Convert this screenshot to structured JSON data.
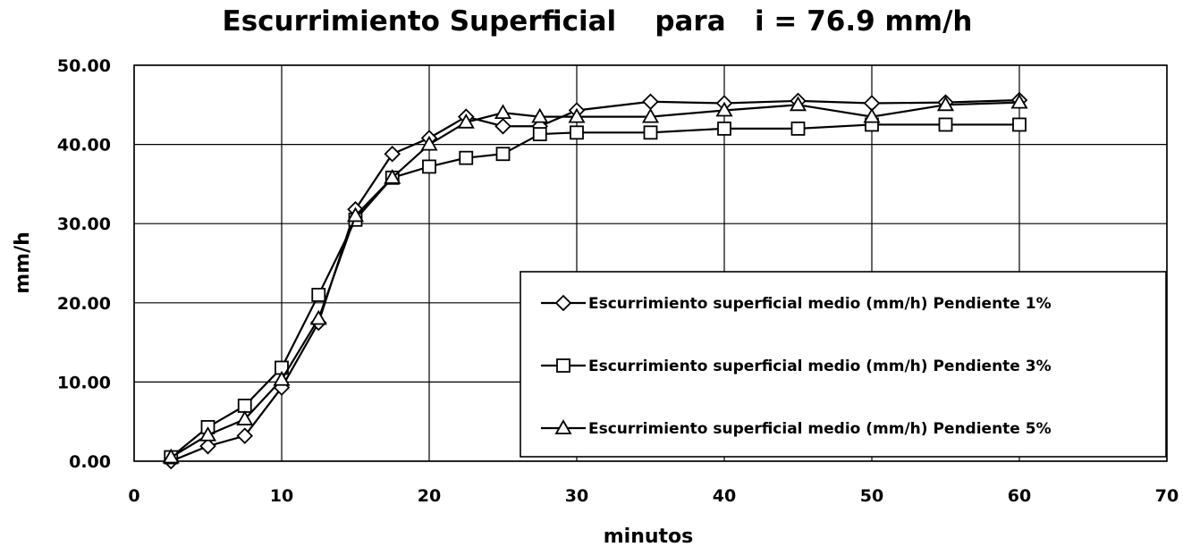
{
  "chart_data": {
    "type": "line",
    "title": "Escurrimiento Superficial    para   i = 76.9 mm/h",
    "xlabel": "minutos",
    "ylabel": "mm/h",
    "xlim": [
      0,
      70
    ],
    "ylim": [
      0,
      50
    ],
    "x_ticks": [
      "0",
      "10",
      "20",
      "30",
      "40",
      "50",
      "60",
      "70"
    ],
    "y_ticks": [
      "0.00",
      "10.00",
      "20.00",
      "30.00",
      "40.00",
      "50.00"
    ],
    "grid": true,
    "legend_position": "bottom-right",
    "series": [
      {
        "name": "Escurrimiento superficial medio (mm/h) Pendiente 1%",
        "marker": "diamond",
        "x": [
          2.5,
          5,
          7.5,
          10,
          12.5,
          15,
          17.5,
          20,
          22.5,
          25,
          27.5,
          30,
          35,
          40,
          45,
          50,
          55,
          60
        ],
        "y": [
          0.0,
          1.9,
          3.2,
          9.3,
          17.5,
          31.8,
          38.8,
          40.8,
          43.5,
          42.3,
          42.3,
          44.3,
          45.4,
          45.2,
          45.5,
          45.2,
          45.3,
          45.6
        ]
      },
      {
        "name": "Escurrimiento superficial medio (mm/h) Pendiente 3%",
        "marker": "square",
        "x": [
          2.5,
          5,
          7.5,
          10,
          12.5,
          15,
          17.5,
          20,
          22.5,
          25,
          27.5,
          30,
          35,
          40,
          45,
          50,
          55,
          60
        ],
        "y": [
          0.5,
          4.3,
          7.0,
          11.8,
          21.0,
          30.5,
          35.8,
          37.2,
          38.3,
          38.8,
          41.3,
          41.5,
          41.5,
          42.0,
          42.0,
          42.5,
          42.5,
          42.5
        ]
      },
      {
        "name": "Escurrimiento superficial medio (mm/h) Pendiente 5%",
        "marker": "triangle",
        "x": [
          2.5,
          5,
          7.5,
          10,
          12.5,
          15,
          17.5,
          20,
          22.5,
          25,
          27.5,
          30,
          35,
          40,
          45,
          50,
          55,
          60
        ],
        "y": [
          0.5,
          3.3,
          5.3,
          10.3,
          18.0,
          31.0,
          35.8,
          40.0,
          42.8,
          44.0,
          43.5,
          43.5,
          43.5,
          44.3,
          45.0,
          43.5,
          45.0,
          45.3
        ]
      }
    ]
  }
}
